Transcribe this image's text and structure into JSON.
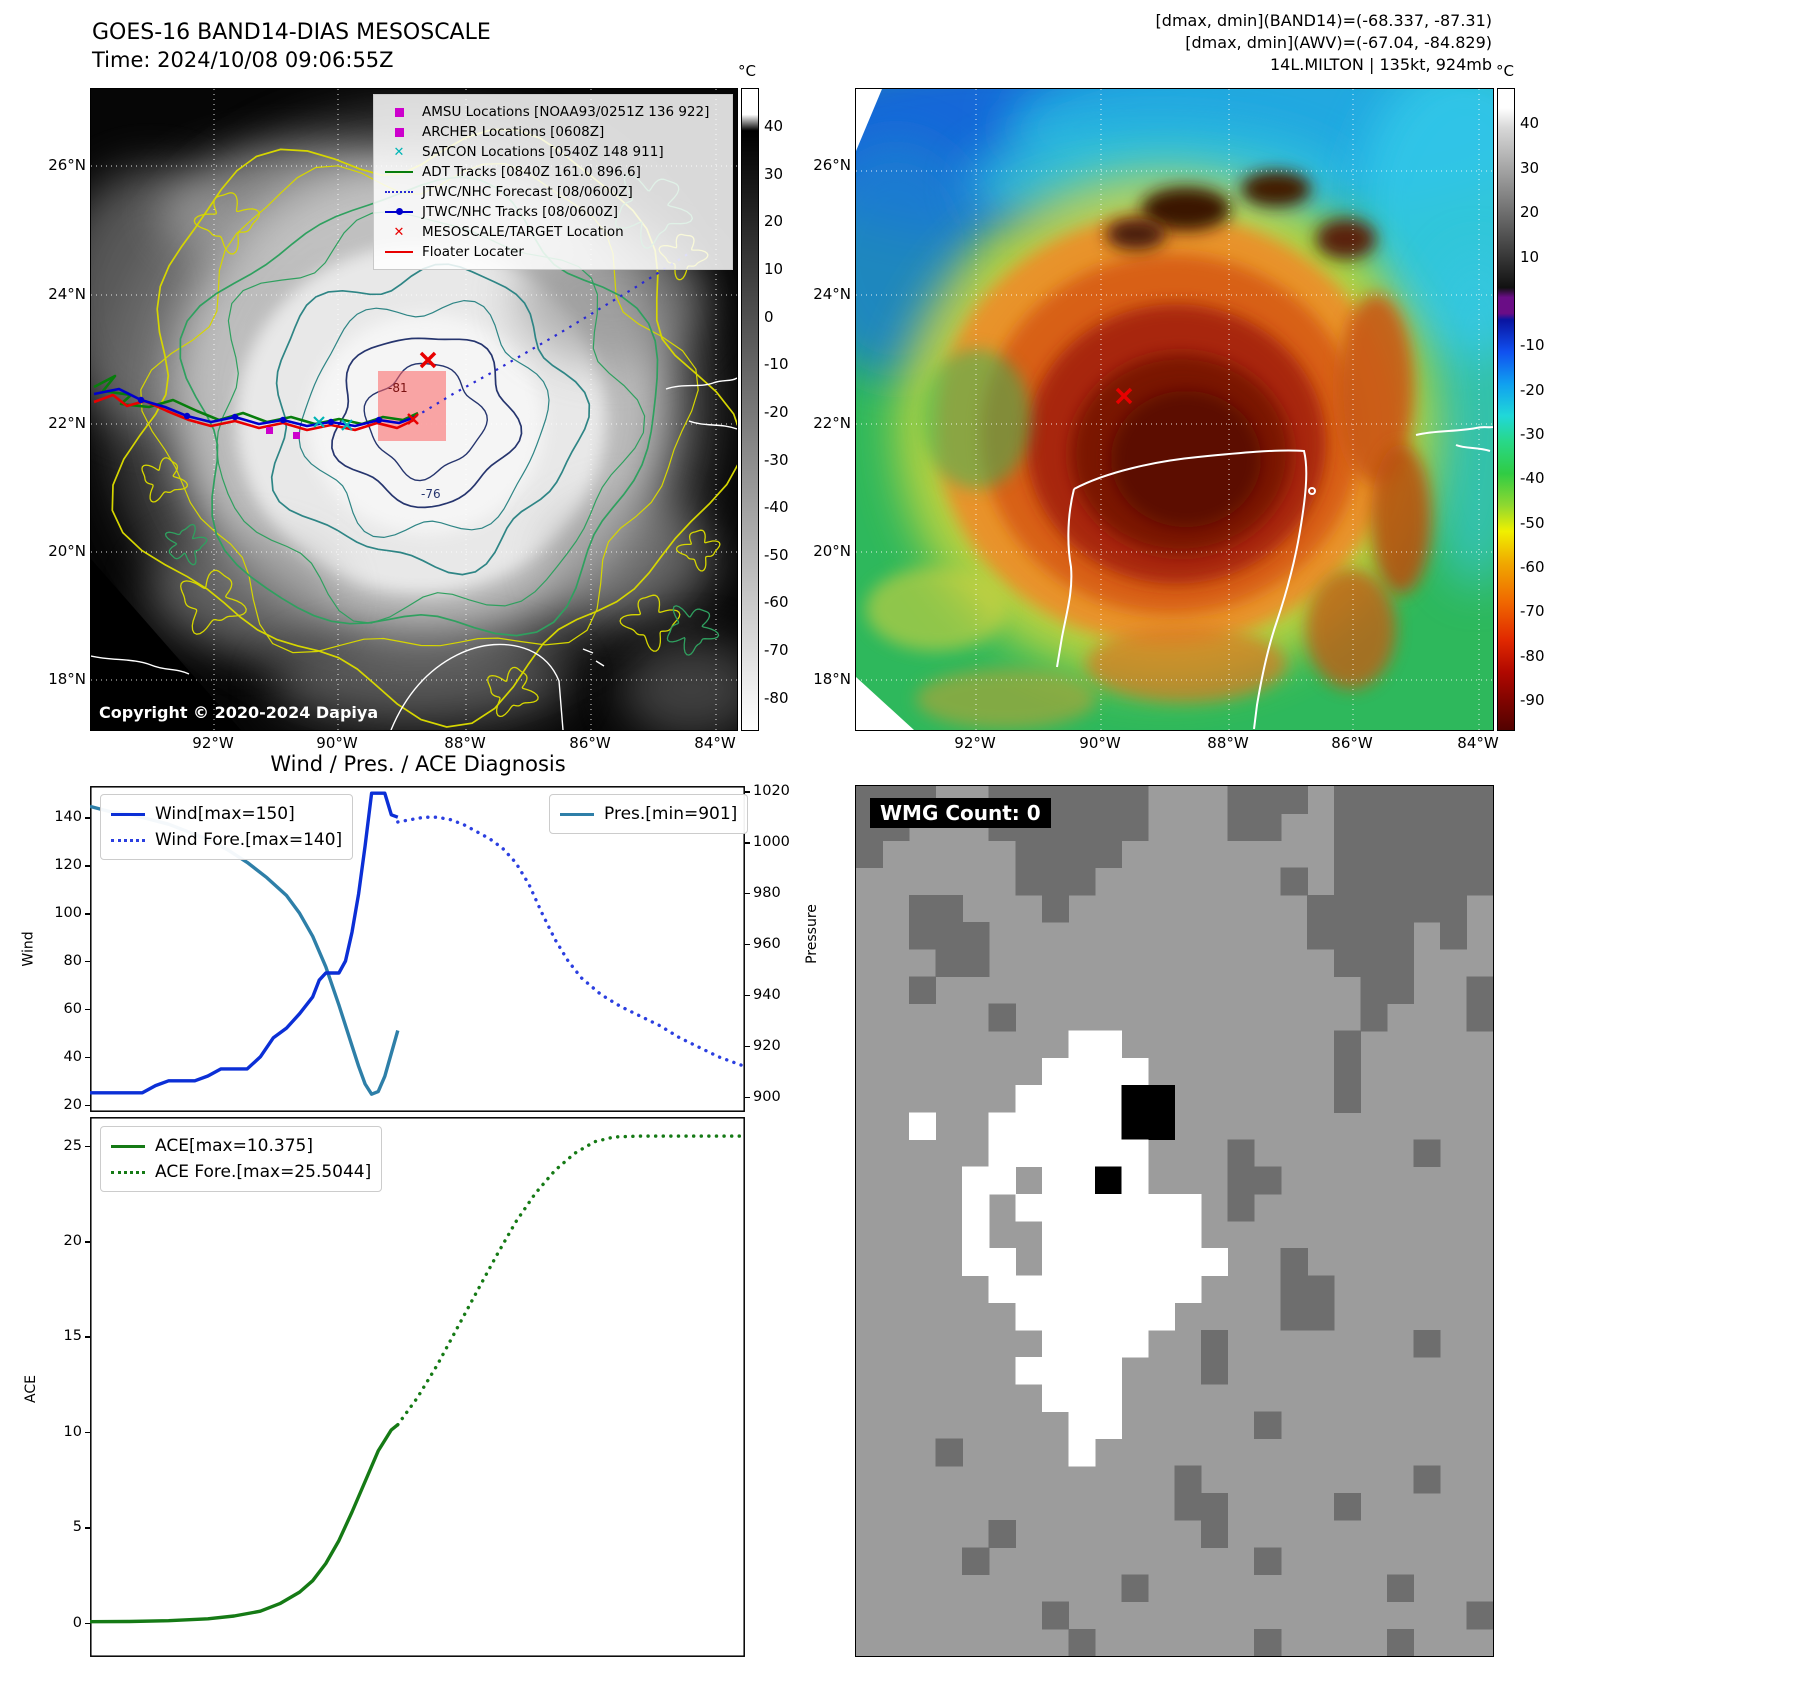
{
  "band14": {
    "title": "GOES-16 BAND14-DIAS MESOSCALE",
    "time_line": "Time: 2024/10/08 09:06:55Z",
    "copyright": "Copyright © 2020-2024 Dapiya",
    "colorbar": {
      "unit": "°C",
      "ticks": [
        40,
        30,
        20,
        10,
        0,
        -10,
        -20,
        -30,
        -40,
        -50,
        -60,
        -70,
        -80
      ]
    },
    "lat_ticks": [
      "26°N",
      "24°N",
      "22°N",
      "20°N",
      "18°N"
    ],
    "lon_ticks": [
      "92°W",
      "90°W",
      "88°W",
      "86°W",
      "84°W"
    ],
    "annotations": {
      "target_box_value": "-81",
      "contour_value": "-76"
    },
    "legend": [
      {
        "label": "AMSU Locations [NOAA93/0251Z 136 922]",
        "marker": "square",
        "color": "#cc00cc"
      },
      {
        "label": "ARCHER Locations [0608Z]",
        "marker": "square",
        "color": "#cc00cc"
      },
      {
        "label": "SATCON Locations [0540Z 148 911]",
        "marker": "x",
        "color": "#00b5b5"
      },
      {
        "label": "ADT Tracks [0840Z 161.0 896.6]",
        "marker": "line",
        "color": "#077d0c"
      },
      {
        "label": "JTWC/NHC Forecast [08/0600Z]",
        "marker": "dotted",
        "color": "#2a2ad4"
      },
      {
        "label": "JTWC/NHC Tracks [08/0600Z]",
        "marker": "line-dot",
        "color": "#0000cc"
      },
      {
        "label": "MESOSCALE/TARGET Location",
        "marker": "x",
        "color": "#e80000"
      },
      {
        "label": "Floater Locater",
        "marker": "line",
        "color": "#e80000"
      }
    ]
  },
  "awv": {
    "header_lines": [
      "[dmax, dmin](BAND14)=(-68.337, -87.31)",
      "[dmax, dmin](AWV)=(-67.04, -84.829)",
      "14L.MILTON | 135kt, 924mb"
    ],
    "colorbar": {
      "unit": "°C",
      "ticks": [
        40,
        30,
        20,
        10,
        -10,
        -20,
        -30,
        -40,
        -50,
        -60,
        -70,
        -80,
        -90
      ]
    },
    "lat_ticks": [
      "26°N",
      "24°N",
      "22°N",
      "20°N",
      "18°N"
    ],
    "lon_ticks": [
      "92°W",
      "90°W",
      "88°W",
      "86°W",
      "84°W"
    ]
  },
  "diagnosis_title": "Wind / Pres. / ACE Diagnosis",
  "wmg": {
    "count_label": "WMG Count: 0",
    "palette": {
      "D": "#6e6e6e",
      "W": "#ffffff",
      "K": "#000000",
      "base": "#9c9c9c"
    },
    "grid": [
      "DDD..DDDDDD...DDD.DDDDDD",
      "DD...DDDDDD...DD..DDDDDD",
      "D.....DDDD........DDDDDD",
      "......DDD.......D.DDDDDD",
      "..DD...D.........DDDDDD.",
      "..DDD............DDDD.D.",
      "...DD.............DDD...",
      "..D................DD..D",
      ".....D.............D...D",
      "........WW........D.....",
      ".......WWWW.......D.....",
      "......WWWWKK......D.....",
      "..W..WWWWWKK............",
      ".....WWWWWW...D......D..",
      "....WW.WWKW...DD........",
      "....W.WWWWWWW.D.........",
      "....W..WWWWWW...........",
      "....WW.WWWWWWW..D.......",
      ".....WWWWWWWW...DD......",
      "......WWWWWW....DD......",
      ".......WWWW..D.......D..",
      "......WWWW...D..........",
      ".......WWW..............",
      "........WW.....D........",
      "...D....W...............",
      "............D........D..",
      "............DD....D.....",
      ".....D.......D..........",
      "....D..........D........",
      "..........D.........D...",
      ".......D...............D",
      "........D......D....D..."
    ]
  },
  "chart_data": [
    {
      "type": "line",
      "title": "Wind / Pres. / ACE Diagnosis",
      "x_range": [
        0,
        100
      ],
      "left_axis": {
        "label": "Wind",
        "ticks": [
          20,
          40,
          60,
          80,
          100,
          120,
          140
        ],
        "range": [
          17,
          153
        ]
      },
      "right_axis": {
        "label": "Pressure",
        "ticks": [
          900,
          920,
          940,
          960,
          980,
          1000,
          1020
        ],
        "range": [
          894,
          1022
        ]
      },
      "series": [
        {
          "name": "Pres.[min=901]",
          "axis": "right",
          "style": "solid",
          "color": "#2e7fa8",
          "legend_box": "tr",
          "x": [
            0,
            3,
            6,
            9,
            12,
            15,
            18,
            21,
            24,
            27,
            30,
            32,
            34,
            36,
            38,
            40,
            41,
            42,
            43,
            44,
            45,
            46,
            47
          ],
          "y": [
            1014,
            1012,
            1011,
            1009,
            1007,
            1004,
            1001,
            997,
            992,
            986,
            979,
            972,
            963,
            951,
            936,
            920,
            912,
            905,
            901,
            902,
            908,
            917,
            926
          ]
        },
        {
          "name": "Wind[max=150]",
          "axis": "left",
          "style": "solid",
          "color": "#0b2fd6",
          "legend_box": "tl",
          "x": [
            0,
            2,
            4,
            6,
            8,
            10,
            12,
            14,
            16,
            18,
            20,
            22,
            24,
            26,
            28,
            30,
            32,
            34,
            35,
            36,
            37,
            38,
            39,
            40,
            41,
            42,
            43,
            44,
            45,
            46,
            47
          ],
          "y": [
            25,
            25,
            25,
            25,
            25,
            28,
            30,
            30,
            30,
            32,
            35,
            35,
            35,
            40,
            48,
            52,
            58,
            65,
            72,
            75,
            75,
            75,
            80,
            92,
            108,
            128,
            150,
            150,
            150,
            141,
            140
          ]
        },
        {
          "name": "Wind Fore.[max=140]",
          "axis": "left",
          "style": "dotted",
          "color": "#2b3fe0",
          "legend_box": "tl",
          "x": [
            47,
            49,
            51,
            53,
            55,
            57,
            59,
            61,
            63,
            65,
            67,
            69,
            71,
            73,
            75,
            78,
            81,
            84,
            87,
            90,
            93,
            96,
            100
          ],
          "y": [
            138,
            139,
            140,
            140,
            139,
            137,
            134,
            131,
            127,
            121,
            112,
            100,
            89,
            80,
            73,
            66,
            61,
            57,
            53,
            48,
            44,
            40,
            36
          ]
        }
      ]
    },
    {
      "type": "line",
      "x_range": [
        0,
        100
      ],
      "left_axis": {
        "label": "ACE",
        "ticks": [
          0,
          5,
          10,
          15,
          20,
          25
        ],
        "range": [
          -1.8,
          26.5
        ]
      },
      "series": [
        {
          "name": "ACE[max=10.375]",
          "axis": "left",
          "style": "solid",
          "color": "#157a15",
          "legend_box": "tl",
          "x": [
            0,
            6,
            12,
            18,
            22,
            26,
            29,
            32,
            34,
            36,
            38,
            40,
            42,
            44,
            46,
            47
          ],
          "y": [
            0.05,
            0.06,
            0.1,
            0.2,
            0.35,
            0.6,
            1.0,
            1.6,
            2.2,
            3.1,
            4.3,
            5.8,
            7.4,
            9.0,
            10.1,
            10.375
          ]
        },
        {
          "name": "ACE Fore.[max=25.5044]",
          "axis": "left",
          "style": "dotted",
          "color": "#157a15",
          "legend_box": "tl",
          "x": [
            47,
            50,
            53,
            56,
            59,
            62,
            65,
            68,
            71,
            74,
            77,
            80,
            84,
            88,
            92,
            96,
            100
          ],
          "y": [
            10.375,
            11.8,
            13.5,
            15.4,
            17.3,
            19.2,
            21.0,
            22.5,
            23.7,
            24.6,
            25.2,
            25.45,
            25.5,
            25.5,
            25.5,
            25.5,
            25.5
          ]
        }
      ]
    }
  ]
}
